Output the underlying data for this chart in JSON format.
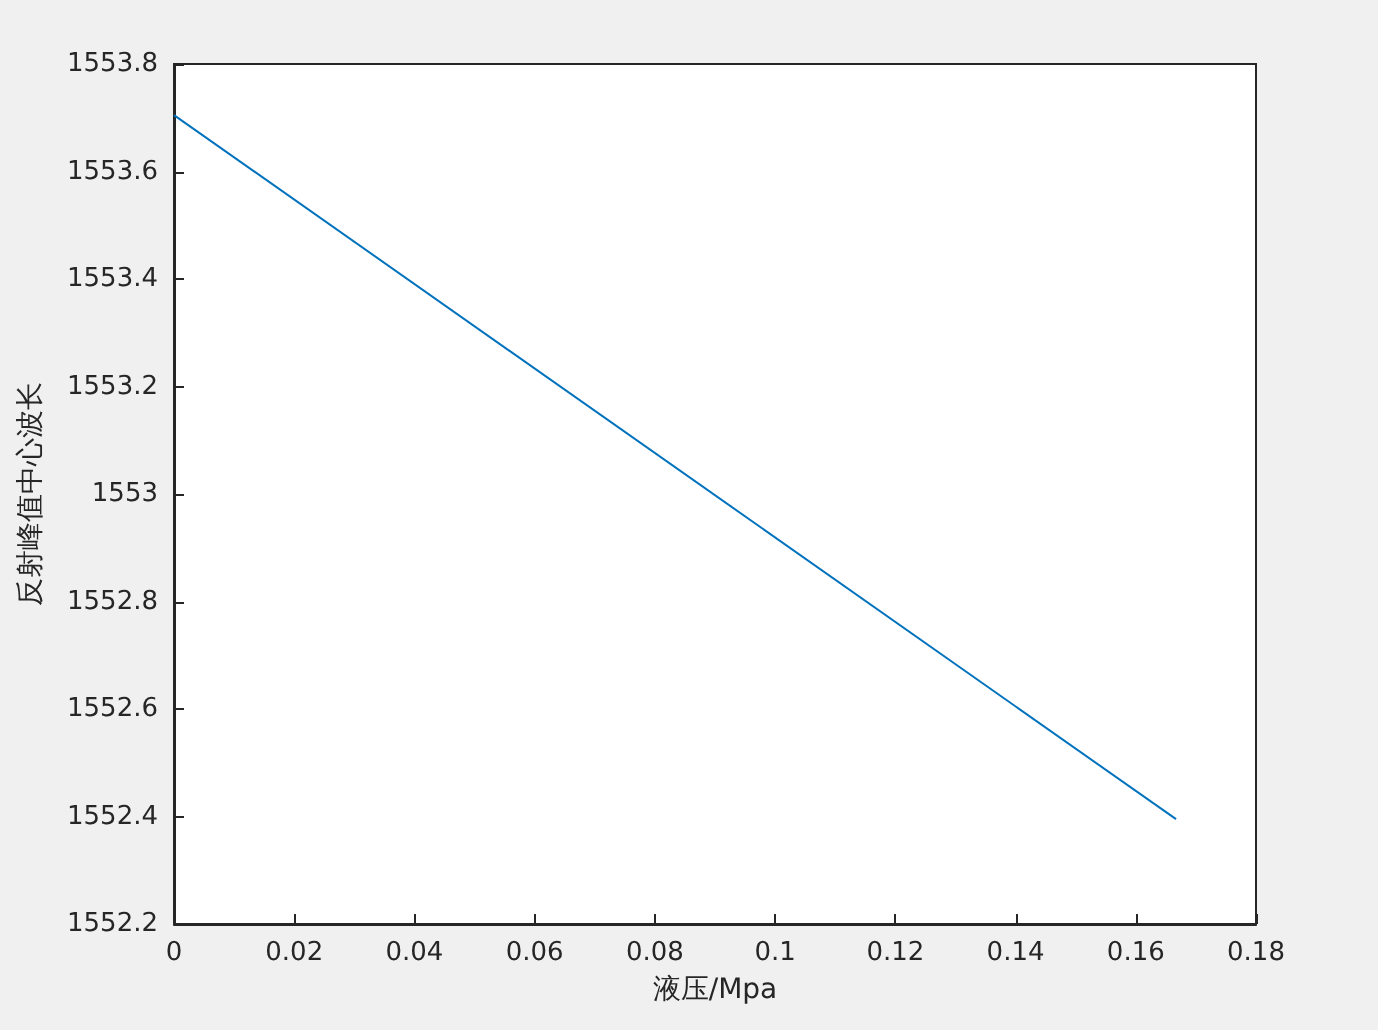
{
  "chart_data": {
    "type": "line",
    "xlabel": "液压/Mpa",
    "ylabel": "反射峰值中心波长",
    "x": [
      0,
      0.1667
    ],
    "series": [
      {
        "color": "#0072bd",
        "values": [
          1553.705,
          1552.395
        ]
      }
    ],
    "xlim": [
      0,
      0.18
    ],
    "xticks": [
      0,
      0.02,
      0.04,
      0.06,
      0.08,
      0.1,
      0.12,
      0.14,
      0.16,
      0.18
    ],
    "ylim": [
      1552.2,
      1553.8
    ],
    "yticks": [
      1552.2,
      1552.4,
      1552.6,
      1552.8,
      1553,
      1553.2,
      1553.4,
      1553.6,
      1553.8
    ],
    "grid": false,
    "marker": "none",
    "line_style": "solid"
  }
}
